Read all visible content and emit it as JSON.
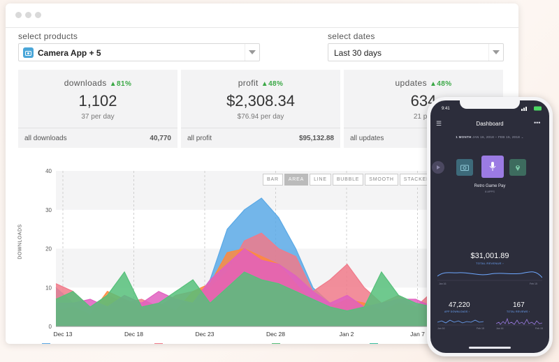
{
  "filters": {
    "products_label": "select products",
    "products_value": "Camera App + 5",
    "dates_label": "select dates",
    "dates_value": "Last 30 days"
  },
  "stats": [
    {
      "name": "downloads",
      "change": "81%",
      "value": "1,102",
      "per": "37 per day",
      "total_label": "all downloads",
      "total_value": "40,770"
    },
    {
      "name": "profit",
      "change": "48%",
      "value": "$2,308.34",
      "per": "$76.94 per day",
      "total_label": "all profit",
      "total_value": "$95,132.88"
    },
    {
      "name": "updates",
      "change": "48%",
      "value": "634",
      "per": "21 per",
      "total_label": "all updates",
      "total_value": ""
    }
  ],
  "chart_types": [
    "BAR",
    "AREA",
    "LINE",
    "BUBBLE",
    "SMOOTH",
    "STACKED"
  ],
  "active_chart_type": "AREA",
  "chart_data": {
    "type": "area",
    "ylabel": "DOWNLOADS",
    "ylim": [
      0,
      40
    ],
    "yticks": [
      "0",
      "10",
      "20",
      "30",
      "40"
    ],
    "x_tick_labels": [
      "Dec 13",
      "Dec 18",
      "Dec 23",
      "Dec 28",
      "Jan 2",
      "Jan 7"
    ],
    "series": [
      {
        "color": "#5aa9e6",
        "values": [
          10,
          6,
          4,
          6,
          7,
          5,
          4,
          5,
          6,
          12,
          25,
          30,
          33,
          28,
          20,
          10,
          6,
          4,
          4,
          4,
          5,
          4,
          4,
          5,
          5,
          4,
          4,
          4
        ]
      },
      {
        "color": "#f07a8a",
        "values": [
          11,
          9,
          5,
          8,
          6,
          7,
          5,
          8,
          9,
          10,
          14,
          22,
          24,
          20,
          18,
          9,
          12,
          16,
          10,
          6,
          8,
          5,
          9,
          5,
          7,
          6,
          5,
          6
        ]
      },
      {
        "color": "#ff8a3d",
        "values": [
          4,
          5,
          3,
          9,
          7,
          5,
          6,
          4,
          9,
          11,
          19,
          20,
          18,
          16,
          11,
          6,
          5,
          7,
          6,
          4,
          6,
          5,
          4,
          7,
          6,
          4,
          5,
          5
        ]
      },
      {
        "color": "#e060c0",
        "values": [
          6,
          6,
          7,
          5,
          8,
          6,
          9,
          7,
          6,
          12,
          16,
          20,
          17,
          16,
          13,
          9,
          6,
          8,
          5,
          6,
          7,
          7,
          5,
          6,
          8,
          6,
          6,
          5
        ]
      },
      {
        "color": "#56c07a",
        "values": [
          7,
          9,
          5,
          8,
          14,
          5,
          6,
          9,
          12,
          6,
          10,
          14,
          12,
          11,
          9,
          7,
          5,
          4,
          5,
          14,
          8,
          6,
          5,
          6,
          5,
          4,
          6,
          5
        ]
      }
    ]
  },
  "phone": {
    "time": "9:41",
    "title": "Dashboard",
    "period_bold": "1 MONTH",
    "period": "JAN 16, 2018 – FEB 15, 2018",
    "app_name": "Retro Game Pay",
    "app_sub": "8 APPS",
    "big_value": "$31,001.89",
    "big_label": "TOTAL REVENUE",
    "axis_left": "Jan 16",
    "axis_right": "Feb 15",
    "left_value": "47,220",
    "left_label": "APP DOWNLOADS",
    "right_value": "167",
    "right_label": "TOTAL REVIEWS",
    "mini_left_start": "Jan 16",
    "mini_left_end": "Feb 15",
    "mini_right_start": "Jan 16",
    "mini_right_end": "Feb 15"
  },
  "colors": {
    "accent_green": "#3aa845",
    "phone_bg": "#2c2d3b",
    "phone_accent": "#6ea8ff",
    "selected_tile": "#9b7be3"
  }
}
